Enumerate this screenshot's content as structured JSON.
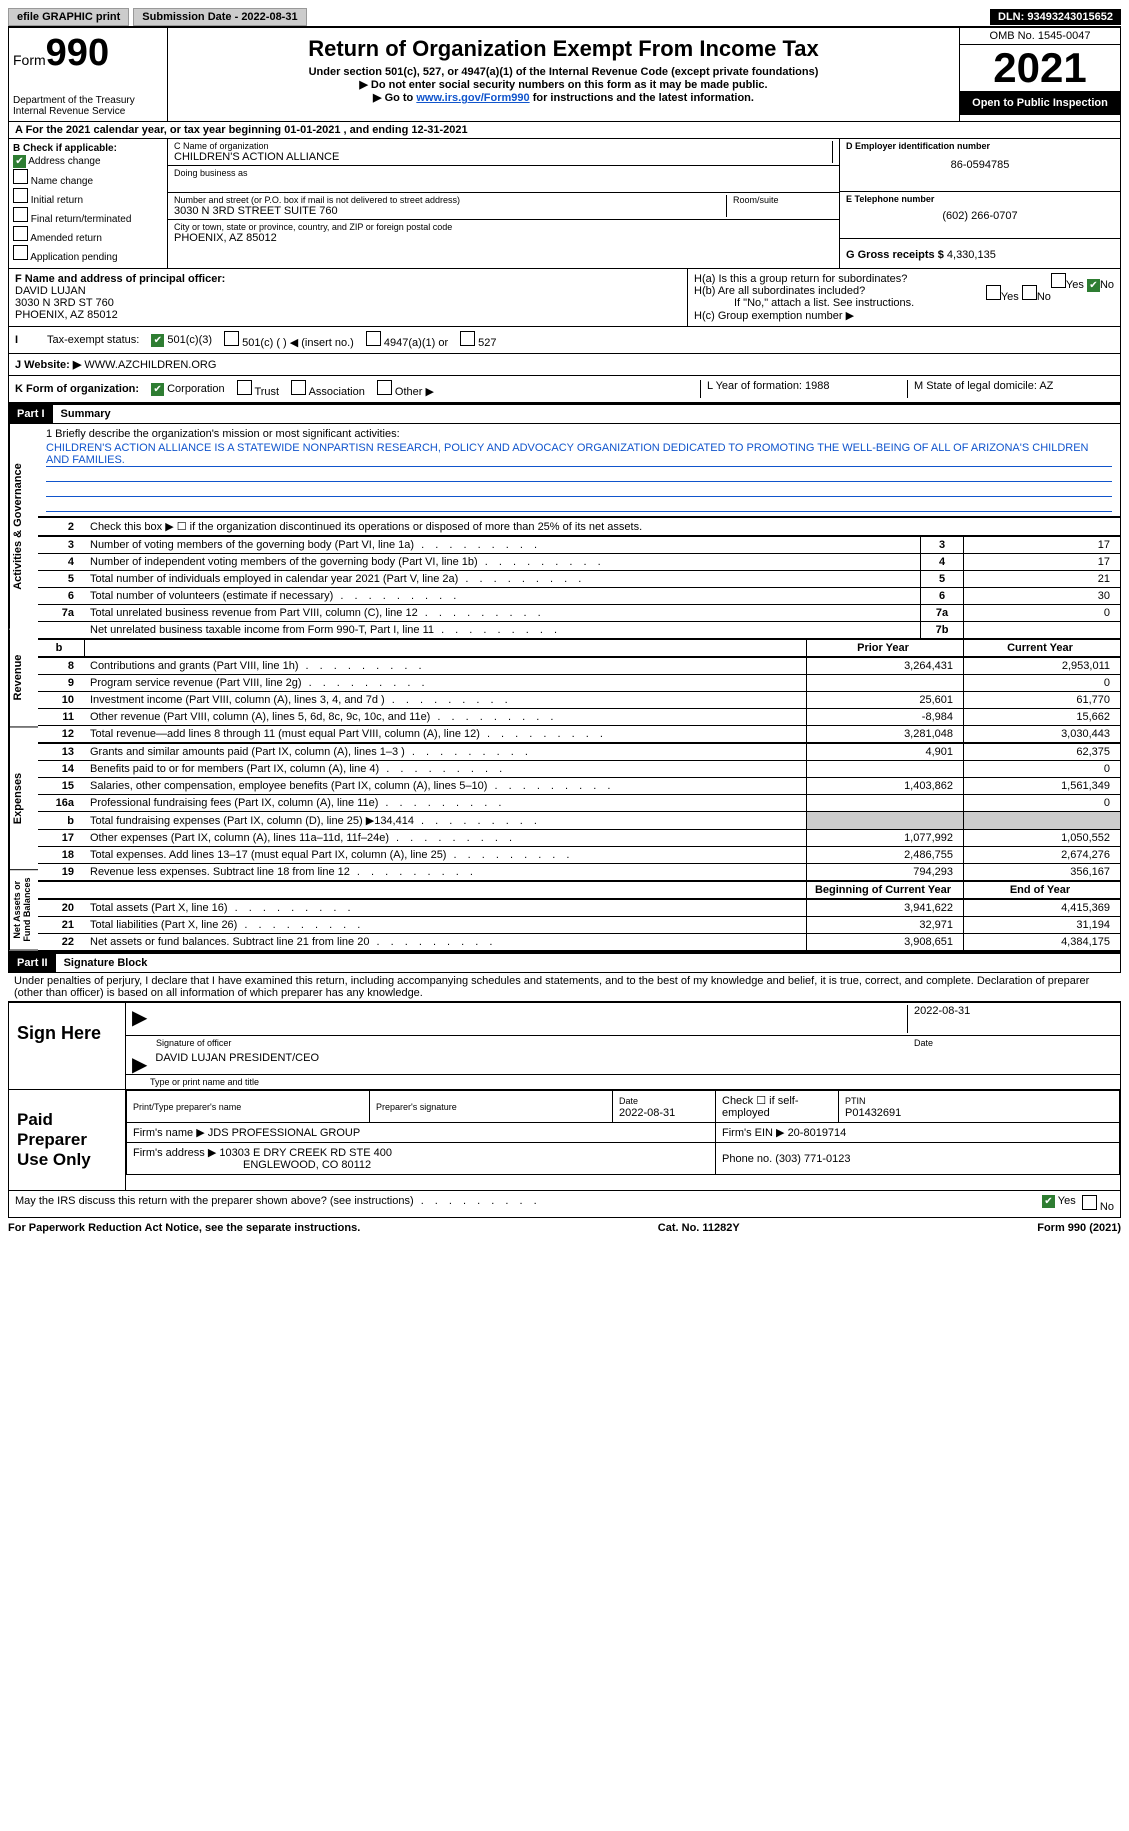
{
  "topbar": {
    "efile": "efile GRAPHIC print",
    "submission": "Submission Date - 2022-08-31",
    "dln": "DLN: 93493243015652"
  },
  "header": {
    "form_prefix": "Form",
    "form_num": "990",
    "dept": "Department of the Treasury Internal Revenue Service",
    "title": "Return of Organization Exempt From Income Tax",
    "sub1": "Under section 501(c), 527, or 4947(a)(1) of the Internal Revenue Code (except private foundations)",
    "sub2": "▶ Do not enter social security numbers on this form as it may be made public.",
    "sub3_pre": "▶ Go to ",
    "sub3_link": "www.irs.gov/Form990",
    "sub3_post": " for instructions and the latest information.",
    "omb": "OMB No. 1545-0047",
    "year": "2021",
    "open": "Open to Public Inspection"
  },
  "row_a": "A For the 2021 calendar year, or tax year beginning 01-01-2021   , and ending 12-31-2021",
  "section_b": {
    "b_label": "B Check if applicable:",
    "checks": [
      "Address change",
      "Name change",
      "Initial return",
      "Final return/terminated",
      "Amended return",
      "Application pending"
    ],
    "c_label": "C Name of organization",
    "c_name": "CHILDREN'S ACTION ALLIANCE",
    "dba_label": "Doing business as",
    "addr_label": "Number and street (or P.O. box if mail is not delivered to street address)",
    "addr": "3030 N 3RD STREET SUITE 760",
    "room_label": "Room/suite",
    "city_label": "City or town, state or province, country, and ZIP or foreign postal code",
    "city": "PHOENIX, AZ  85012",
    "d_label": "D Employer identification number",
    "d_val": "86-0594785",
    "e_label": "E Telephone number",
    "e_val": "(602) 266-0707",
    "g_label": "G Gross receipts $",
    "g_val": "4,330,135"
  },
  "section_f": {
    "f_label": "F  Name and address of principal officer:",
    "f_name": "DAVID LUJAN",
    "f_addr1": "3030 N 3RD ST 760",
    "f_addr2": "PHOENIX, AZ  85012",
    "ha": "H(a)  Is this a group return for subordinates?",
    "hb": "H(b)  Are all subordinates included?",
    "hb_note": "If \"No,\" attach a list. See instructions.",
    "hc": "H(c)  Group exemption number ▶"
  },
  "tax_status": {
    "label": "Tax-exempt status:",
    "opt1": "501(c)(3)",
    "opt2": "501(c) (   ) ◀ (insert no.)",
    "opt3": "4947(a)(1) or",
    "opt4": "527"
  },
  "website": {
    "label": "J Website: ▶",
    "val": "WWW.AZCHILDREN.ORG"
  },
  "k_row": {
    "k": "K Form of organization:",
    "corp": "Corporation",
    "trust": "Trust",
    "assoc": "Association",
    "other": "Other ▶",
    "l": "L Year of formation: 1988",
    "m": "M State of legal domicile: AZ"
  },
  "part1": {
    "header": "Part I",
    "title": "Summary",
    "side1": "Activities & Governance",
    "side2": "Revenue",
    "side3": "Expenses",
    "side4": "Net Assets or Fund Balances",
    "line1_label": "1  Briefly describe the organization's mission or most significant activities:",
    "line1_text": "CHILDREN'S ACTION ALLIANCE IS A STATEWIDE NONPARTISN RESEARCH, POLICY AND ADVOCACY ORGANIZATION DEDICATED TO PROMOTING THE WELL-BEING OF ALL OF ARIZONA'S CHILDREN AND FAMILIES.",
    "line2": "Check this box ▶ ☐ if the organization discontinued its operations or disposed of more than 25% of its net assets.",
    "lines_gov": [
      {
        "n": "3",
        "t": "Number of voting members of the governing body (Part VI, line 1a)",
        "box": "3",
        "v": "17"
      },
      {
        "n": "4",
        "t": "Number of independent voting members of the governing body (Part VI, line 1b)",
        "box": "4",
        "v": "17"
      },
      {
        "n": "5",
        "t": "Total number of individuals employed in calendar year 2021 (Part V, line 2a)",
        "box": "5",
        "v": "21"
      },
      {
        "n": "6",
        "t": "Total number of volunteers (estimate if necessary)",
        "box": "6",
        "v": "30"
      },
      {
        "n": "7a",
        "t": "Total unrelated business revenue from Part VIII, column (C), line 12",
        "box": "7a",
        "v": "0"
      },
      {
        "n": "",
        "t": "Net unrelated business taxable income from Form 990-T, Part I, line 11",
        "box": "7b",
        "v": ""
      }
    ],
    "col_prior": "Prior Year",
    "col_current": "Current Year",
    "lines_rev": [
      {
        "n": "8",
        "t": "Contributions and grants (Part VIII, line 1h)",
        "p": "3,264,431",
        "c": "2,953,011"
      },
      {
        "n": "9",
        "t": "Program service revenue (Part VIII, line 2g)",
        "p": "",
        "c": "0"
      },
      {
        "n": "10",
        "t": "Investment income (Part VIII, column (A), lines 3, 4, and 7d )",
        "p": "25,601",
        "c": "61,770"
      },
      {
        "n": "11",
        "t": "Other revenue (Part VIII, column (A), lines 5, 6d, 8c, 9c, 10c, and 11e)",
        "p": "-8,984",
        "c": "15,662"
      },
      {
        "n": "12",
        "t": "Total revenue—add lines 8 through 11 (must equal Part VIII, column (A), line 12)",
        "p": "3,281,048",
        "c": "3,030,443"
      }
    ],
    "lines_exp": [
      {
        "n": "13",
        "t": "Grants and similar amounts paid (Part IX, column (A), lines 1–3 )",
        "p": "4,901",
        "c": "62,375"
      },
      {
        "n": "14",
        "t": "Benefits paid to or for members (Part IX, column (A), line 4)",
        "p": "",
        "c": "0"
      },
      {
        "n": "15",
        "t": "Salaries, other compensation, employee benefits (Part IX, column (A), lines 5–10)",
        "p": "1,403,862",
        "c": "1,561,349"
      },
      {
        "n": "16a",
        "t": "Professional fundraising fees (Part IX, column (A), line 11e)",
        "p": "",
        "c": "0"
      },
      {
        "n": "b",
        "t": "Total fundraising expenses (Part IX, column (D), line 25) ▶134,414",
        "p": "shade",
        "c": "shade"
      },
      {
        "n": "17",
        "t": "Other expenses (Part IX, column (A), lines 11a–11d, 11f–24e)",
        "p": "1,077,992",
        "c": "1,050,552"
      },
      {
        "n": "18",
        "t": "Total expenses. Add lines 13–17 (must equal Part IX, column (A), line 25)",
        "p": "2,486,755",
        "c": "2,674,276"
      },
      {
        "n": "19",
        "t": "Revenue less expenses. Subtract line 18 from line 12",
        "p": "794,293",
        "c": "356,167"
      }
    ],
    "col_begin": "Beginning of Current Year",
    "col_end": "End of Year",
    "lines_net": [
      {
        "n": "20",
        "t": "Total assets (Part X, line 16)",
        "p": "3,941,622",
        "c": "4,415,369"
      },
      {
        "n": "21",
        "t": "Total liabilities (Part X, line 26)",
        "p": "32,971",
        "c": "31,194"
      },
      {
        "n": "22",
        "t": "Net assets or fund balances. Subtract line 21 from line 20",
        "p": "3,908,651",
        "c": "4,384,175"
      }
    ]
  },
  "part2": {
    "header": "Part II",
    "title": "Signature Block",
    "perjury": "Under penalties of perjury, I declare that I have examined this return, including accompanying schedules and statements, and to the best of my knowledge and belief, it is true, correct, and complete. Declaration of preparer (other than officer) is based on all information of which preparer has any knowledge.",
    "sign_here": "Sign Here",
    "sig_date": "2022-08-31",
    "sig_officer": "Signature of officer",
    "date_label": "Date",
    "officer_name": "DAVID LUJAN  PRESIDENT/CEO",
    "officer_sub": "Type or print name and title",
    "paid": "Paid Preparer Use Only",
    "prep_name_label": "Print/Type preparer's name",
    "prep_sig_label": "Preparer's signature",
    "prep_date_label": "Date",
    "prep_date": "2022-08-31",
    "check_self": "Check ☐ if self-employed",
    "ptin_label": "PTIN",
    "ptin": "P01432691",
    "firm_name_label": "Firm's name    ▶",
    "firm_name": "JDS PROFESSIONAL GROUP",
    "firm_ein_label": "Firm's EIN ▶",
    "firm_ein": "20-8019714",
    "firm_addr_label": "Firm's address ▶",
    "firm_addr1": "10303 E DRY CREEK RD STE 400",
    "firm_addr2": "ENGLEWOOD, CO  80112",
    "phone_label": "Phone no.",
    "phone": "(303) 771-0123",
    "may_irs": "May the IRS discuss this return with the preparer shown above? (see instructions)"
  },
  "footer": {
    "left": "For Paperwork Reduction Act Notice, see the separate instructions.",
    "mid": "Cat. No. 11282Y",
    "right": "Form 990 (2021)"
  }
}
